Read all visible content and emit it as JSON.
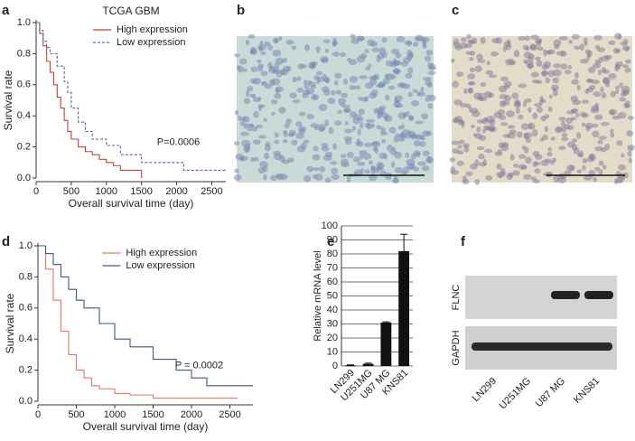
{
  "panel_labels": [
    "a",
    "b",
    "c",
    "d",
    "e",
    "f"
  ],
  "blot": {
    "rows": [
      "FLNC",
      "GAPDH"
    ],
    "lanes": [
      "LN299",
      "U251MG",
      "U87 MG",
      "KNS81"
    ]
  },
  "chart_data": [
    {
      "type": "line",
      "step": true,
      "title": "TCGA GBM",
      "xlabel": "Overall survival time (day)",
      "ylabel": "Survival rate",
      "annotation": "P=0.0006",
      "xlim": [
        0,
        2700
      ],
      "xticks": [
        0,
        500,
        1000,
        1500,
        2000,
        2500
      ],
      "ylim": [
        0,
        1
      ],
      "yticks": [
        {
          "value": 0,
          "label": "0.0"
        },
        0.2,
        0.4,
        0.6,
        0.8,
        {
          "value": 1,
          "label": "1.0"
        }
      ],
      "legend": "upper right",
      "series": [
        {
          "name": "High expression",
          "color": "#c8413b",
          "dash": false,
          "x": [
            0,
            50,
            100,
            150,
            200,
            250,
            300,
            350,
            400,
            450,
            500,
            600,
            700,
            800,
            900,
            1000,
            1100,
            1200,
            1500
          ],
          "values": [
            1,
            0.93,
            0.85,
            0.75,
            0.68,
            0.6,
            0.52,
            0.45,
            0.37,
            0.3,
            0.25,
            0.2,
            0.17,
            0.15,
            0.12,
            0.1,
            0.08,
            0.05,
            0.0
          ]
        },
        {
          "name": "Low expression",
          "color": "#5a5fa8",
          "dash": true,
          "x": [
            0,
            50,
            100,
            150,
            200,
            300,
            400,
            450,
            500,
            600,
            700,
            800,
            1000,
            1200,
            1500,
            2100,
            2700
          ],
          "values": [
            1,
            0.95,
            0.88,
            0.84,
            0.8,
            0.72,
            0.62,
            0.55,
            0.45,
            0.36,
            0.3,
            0.25,
            0.21,
            0.15,
            0.1,
            0.05,
            0.05
          ]
        }
      ]
    },
    {
      "type": "line",
      "step": true,
      "xlabel": "Overall survival time (day)",
      "ylabel": "Survival rate",
      "annotation": "P = 0.0002",
      "xlim": [
        0,
        2800
      ],
      "xticks": [
        0,
        500,
        1000,
        1500,
        2000,
        2500
      ],
      "ylim": [
        0,
        1
      ],
      "yticks": [
        {
          "value": 0,
          "label": "0.0"
        },
        0.2,
        0.4,
        0.6,
        0.8,
        {
          "value": 1,
          "label": "1.0"
        }
      ],
      "legend": "upper right",
      "series": [
        {
          "name": "High expression",
          "color": "#e8756a",
          "dash": false,
          "x": [
            0,
            100,
            200,
            300,
            400,
            500,
            600,
            700,
            800,
            1000,
            1200,
            1500,
            2000,
            2600
          ],
          "values": [
            1,
            0.85,
            0.65,
            0.45,
            0.3,
            0.2,
            0.15,
            0.1,
            0.08,
            0.05,
            0.04,
            0.02,
            0.02,
            0.02
          ]
        },
        {
          "name": "Low expression",
          "color": "#3f5a78",
          "dash": false,
          "x": [
            0,
            100,
            200,
            300,
            400,
            500,
            600,
            800,
            1000,
            1200,
            1500,
            1800,
            2000,
            2200,
            2800
          ],
          "values": [
            1,
            0.95,
            0.88,
            0.8,
            0.72,
            0.65,
            0.6,
            0.5,
            0.4,
            0.35,
            0.27,
            0.2,
            0.15,
            0.1,
            0.1
          ]
        }
      ]
    },
    {
      "type": "bar",
      "ylabel": "Relative mRNA level",
      "categories": [
        "LN299",
        "U251MG",
        "U87 MG",
        "KNS81"
      ],
      "values": [
        0.5,
        1.5,
        31,
        82
      ],
      "errors": [
        0.3,
        0.5,
        0.5,
        12
      ],
      "color": "#111111",
      "ylim": [
        0,
        100
      ],
      "yticks": [
        0,
        10,
        20,
        30,
        40,
        50,
        60,
        70,
        80,
        90,
        100
      ],
      "grid": true
    }
  ]
}
